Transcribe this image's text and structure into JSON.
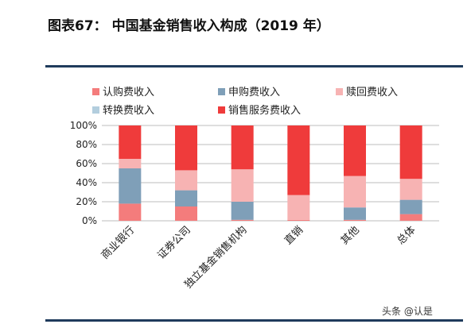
{
  "figure": {
    "title": "图表67：  中国基金销售收入构成（2019 年）"
  },
  "watermark": "头条 @认是",
  "colors": {
    "subscription": "#f47c7c",
    "purchase": "#7f9fb8",
    "redemption": "#f7b3b3",
    "switch": "#b3cede",
    "service": "#ef3b3b"
  },
  "chart_data": {
    "type": "bar",
    "stacked": true,
    "categories": [
      "商业银行",
      "证券公司",
      "独立基金销售机构",
      "直销",
      "其他",
      "总体"
    ],
    "series": [
      {
        "name": "认购费收入",
        "color_key": "subscription",
        "values": [
          18,
          15,
          1,
          1,
          1,
          7
        ]
      },
      {
        "name": "申购费收入",
        "color_key": "purchase",
        "values": [
          37,
          17,
          19,
          0,
          13,
          15
        ]
      },
      {
        "name": "赎回费收入",
        "color_key": "redemption",
        "values": [
          10,
          21,
          34,
          26,
          33,
          22
        ]
      },
      {
        "name": "转换费收入",
        "color_key": "switch",
        "values": [
          0,
          0,
          0,
          0,
          0,
          0
        ]
      },
      {
        "name": "销售服务费收入",
        "color_key": "service",
        "values": [
          35,
          47,
          46,
          73,
          53,
          56
        ]
      }
    ],
    "yticks": [
      "0%",
      "20%",
      "40%",
      "60%",
      "80%",
      "100%"
    ],
    "ylim": [
      0,
      100
    ],
    "grid": true,
    "legend_position": "top-left"
  }
}
